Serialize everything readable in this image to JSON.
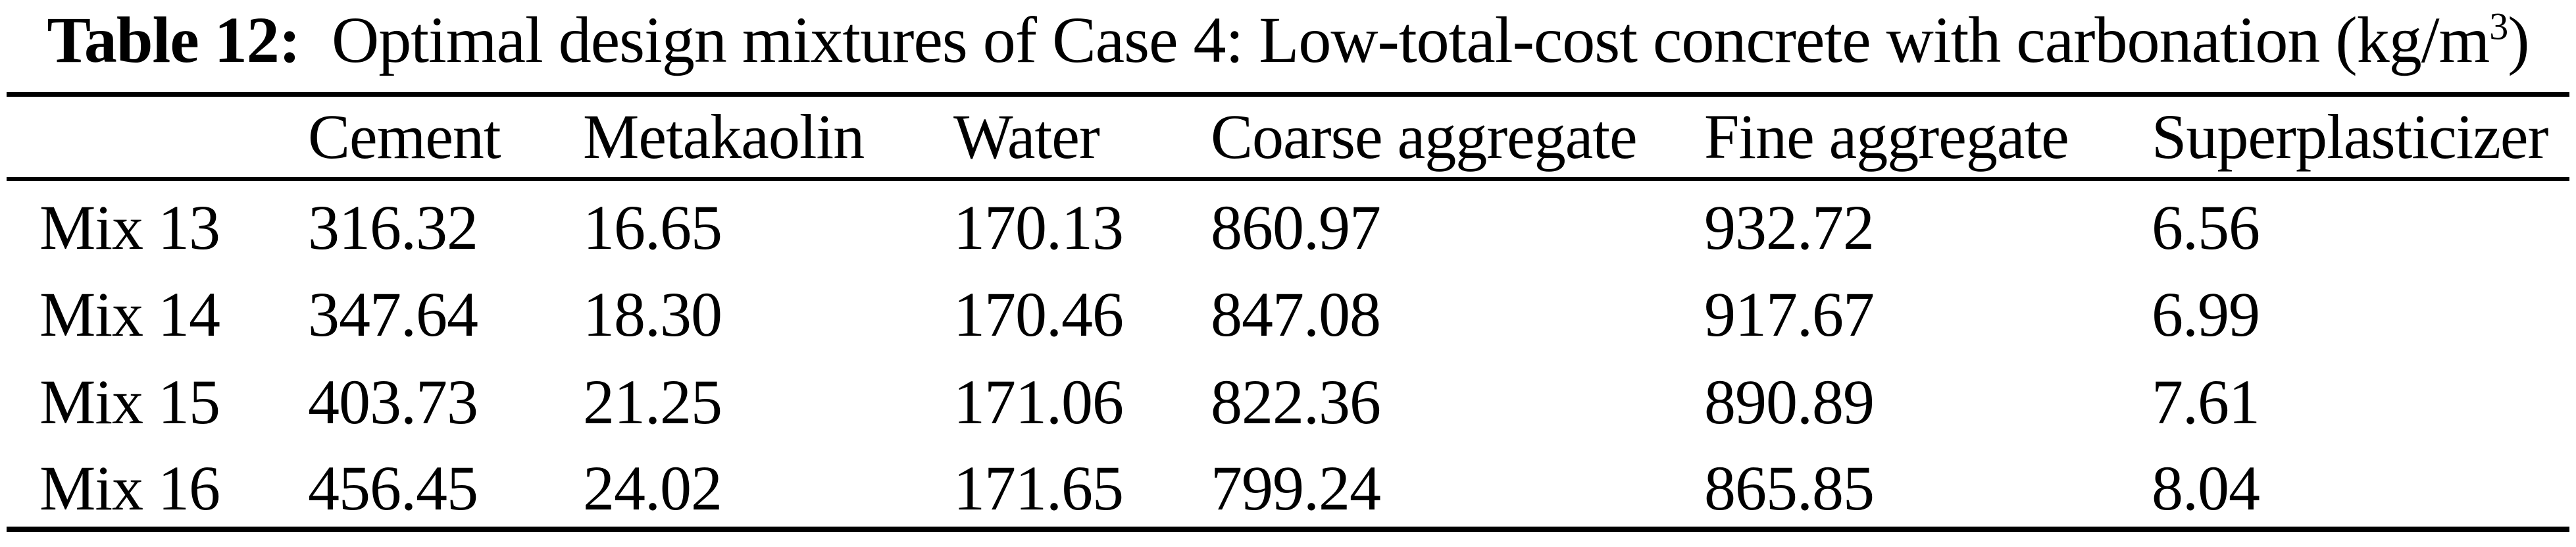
{
  "title": {
    "label": "Table 12:",
    "text": "Optimal design mixtures of Case 4: Low-total-cost concrete with carbonation (kg/m",
    "superscript": "3",
    "suffix": ")"
  },
  "table": {
    "columns": [
      "",
      "Cement",
      "Metakaolin",
      "Water",
      "Coarse aggregate",
      "Fine aggregate",
      "Superplasticizer"
    ],
    "rows": [
      {
        "label": "Mix 13",
        "values": [
          "316.32",
          "16.65",
          "170.13",
          "860.97",
          "932.72",
          "6.56"
        ]
      },
      {
        "label": "Mix 14",
        "values": [
          "347.64",
          "18.30",
          "170.46",
          "847.08",
          "917.67",
          "6.99"
        ]
      },
      {
        "label": "Mix 15",
        "values": [
          "403.73",
          "21.25",
          "171.06",
          "822.36",
          "890.89",
          "7.61"
        ]
      },
      {
        "label": "Mix 16",
        "values": [
          "456.45",
          "24.02",
          "171.65",
          "799.24",
          "865.85",
          "8.04"
        ]
      }
    ]
  }
}
